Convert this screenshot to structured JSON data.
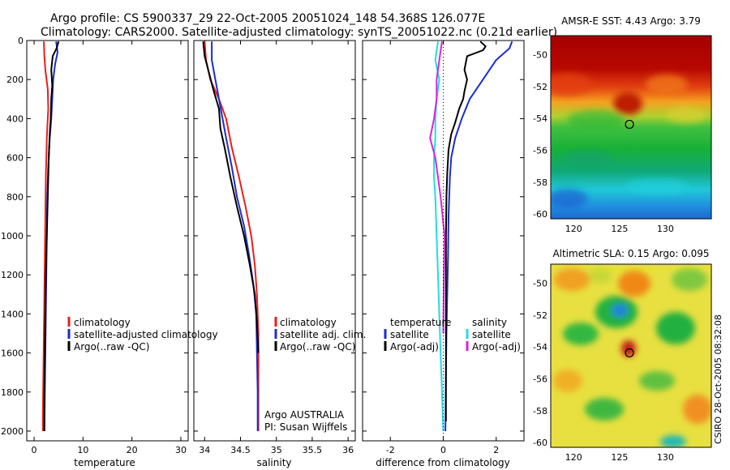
{
  "header": {
    "line1": "Argo profile: CS 5900337_29 22-Oct-2005 20051024_148 54.368S 126.077E",
    "line2": "Climatology: CARS2000. Satellite-adjusted climatology: synTS_20051022.nc (0.21d earlier)"
  },
  "colors": {
    "climatology": "#ee1c1c",
    "satellite": "#1c2ccc",
    "argo": "#000000",
    "satellite_salinity": "#22dddd",
    "argo_adj_salinity": "#dd22dd"
  },
  "credit": "CSIRO 28-Oct-2005 08:32:08",
  "chart_data": [
    {
      "type": "line",
      "xlabel": "temperature",
      "xlim": [
        -1.5,
        31.5
      ],
      "ylim": [
        2050,
        0
      ],
      "xticks": [
        0,
        10,
        20,
        30
      ],
      "yticks": [
        0,
        200,
        400,
        600,
        800,
        1000,
        1200,
        1400,
        1600,
        1800,
        2000
      ],
      "legend": {
        "placement": "lower-right",
        "entries": [
          "climatology",
          "satellite-adjusted climatology",
          "Argo(..raw -QC)"
        ]
      },
      "series": [
        {
          "name": "climatology",
          "color": "#ee1c1c",
          "points": [
            [
              2.0,
              5
            ],
            [
              2.1,
              80
            ],
            [
              2.3,
              150
            ],
            [
              2.8,
              250
            ],
            [
              2.9,
              350
            ],
            [
              2.6,
              500
            ],
            [
              2.4,
              700
            ],
            [
              2.3,
              900
            ],
            [
              2.2,
              1100
            ],
            [
              2.1,
              1300
            ],
            [
              2.0,
              1500
            ],
            [
              1.9,
              1700
            ],
            [
              1.8,
              1900
            ],
            [
              1.8,
              2000
            ]
          ]
        },
        {
          "name": "satellite-adjusted climatology",
          "color": "#1c2ccc",
          "points": [
            [
              4.5,
              5
            ],
            [
              4.8,
              60
            ],
            [
              4.3,
              120
            ],
            [
              3.9,
              200
            ],
            [
              3.7,
              300
            ],
            [
              3.5,
              400
            ],
            [
              3.2,
              500
            ],
            [
              2.9,
              650
            ],
            [
              2.7,
              800
            ],
            [
              2.6,
              1000
            ],
            [
              2.5,
              1200
            ],
            [
              2.4,
              1400
            ],
            [
              2.3,
              1600
            ],
            [
              2.2,
              1800
            ],
            [
              2.1,
              2000
            ]
          ]
        },
        {
          "name": "Argo(..raw -QC)",
          "color": "#000000",
          "points": [
            [
              5.0,
              5
            ],
            [
              4.6,
              40
            ],
            [
              3.8,
              80
            ],
            [
              3.5,
              150
            ],
            [
              3.7,
              230
            ],
            [
              3.5,
              300
            ],
            [
              3.4,
              400
            ],
            [
              3.2,
              480
            ],
            [
              3.0,
              600
            ],
            [
              2.8,
              800
            ],
            [
              2.6,
              1000
            ],
            [
              2.4,
              1200
            ],
            [
              2.3,
              1400
            ],
            [
              2.2,
              1600
            ],
            [
              2.1,
              1800
            ],
            [
              2.1,
              2000
            ]
          ]
        }
      ]
    },
    {
      "type": "line",
      "xlabel": "salinity",
      "xlim": [
        33.85,
        36.1
      ],
      "ylim": [
        2050,
        0
      ],
      "xticks": [
        34,
        34.5,
        35,
        35.5,
        36
      ],
      "yticks": [
        0,
        200,
        400,
        600,
        800,
        1000,
        1200,
        1400,
        1600,
        1800,
        2000
      ],
      "legend": {
        "placement": "lower-right",
        "entries": [
          "climatology",
          "satellite adj. clim.",
          "Argo(..raw -QC)"
        ]
      },
      "notes": [
        "Argo AUSTRALIA",
        "PI: Susan Wijffels"
      ],
      "series": [
        {
          "name": "climatology",
          "color": "#ee1c1c",
          "points": [
            [
              34.0,
              5
            ],
            [
              34.02,
              100
            ],
            [
              34.08,
              200
            ],
            [
              34.2,
              300
            ],
            [
              34.3,
              400
            ],
            [
              34.38,
              550
            ],
            [
              34.48,
              700
            ],
            [
              34.57,
              850
            ],
            [
              34.65,
              1000
            ],
            [
              34.7,
              1150
            ],
            [
              34.73,
              1300
            ],
            [
              34.75,
              1500
            ],
            [
              34.75,
              1800
            ],
            [
              34.75,
              2000
            ]
          ]
        },
        {
          "name": "satellite adj. clim.",
          "color": "#1c2ccc",
          "points": [
            [
              34.1,
              5
            ],
            [
              34.1,
              100
            ],
            [
              34.15,
              200
            ],
            [
              34.2,
              300
            ],
            [
              34.25,
              400
            ],
            [
              34.3,
              500
            ],
            [
              34.38,
              650
            ],
            [
              34.45,
              800
            ],
            [
              34.55,
              950
            ],
            [
              34.62,
              1100
            ],
            [
              34.68,
              1250
            ],
            [
              34.72,
              1400
            ],
            [
              34.73,
              1600
            ],
            [
              34.74,
              1800
            ],
            [
              34.74,
              2000
            ]
          ]
        },
        {
          "name": "Argo(..raw -QC)",
          "color": "#000000",
          "points": [
            [
              33.98,
              5
            ],
            [
              34.0,
              80
            ],
            [
              34.05,
              150
            ],
            [
              34.12,
              250
            ],
            [
              34.2,
              350
            ],
            [
              34.22,
              450
            ],
            [
              34.28,
              550
            ],
            [
              34.36,
              700
            ],
            [
              34.45,
              850
            ],
            [
              34.55,
              1000
            ],
            [
              34.63,
              1150
            ],
            [
              34.7,
              1300
            ],
            [
              34.73,
              1450
            ],
            [
              34.75,
              1600
            ]
          ]
        }
      ]
    },
    {
      "type": "line",
      "xlabel": "difference from climatology",
      "xlim": [
        -3.05,
        3.05
      ],
      "ylim": [
        2050,
        0
      ],
      "xticks": [
        -2,
        0,
        2
      ],
      "yticks": [
        0,
        200,
        400,
        600,
        800,
        1000,
        1200,
        1400,
        1600,
        1800,
        2000
      ],
      "legend": {
        "placement": "lower-right",
        "group1_title": "temperature",
        "group1": [
          "satellite",
          "Argo(-adj)"
        ],
        "group2_title": "salinity",
        "group2": [
          "satellite",
          "Argo(-adj)"
        ]
      },
      "series": [
        {
          "name": "temperature satellite",
          "color": "#1c2ccc",
          "points": [
            [
              2.6,
              5
            ],
            [
              2.5,
              40
            ],
            [
              2.0,
              100
            ],
            [
              1.5,
              200
            ],
            [
              1.0,
              300
            ],
            [
              0.7,
              400
            ],
            [
              0.45,
              500
            ],
            [
              0.3,
              600
            ],
            [
              0.25,
              700
            ],
            [
              0.2,
              900
            ],
            [
              0.18,
              1100
            ],
            [
              0.15,
              1300
            ],
            [
              0.12,
              1500
            ],
            [
              0.1,
              1700
            ],
            [
              0.08,
              2000
            ]
          ]
        },
        {
          "name": "temperature Argo(-adj)",
          "color": "#000000",
          "points": [
            [
              1.4,
              5
            ],
            [
              1.6,
              30
            ],
            [
              1.5,
              50
            ],
            [
              0.9,
              80
            ],
            [
              0.8,
              150
            ],
            [
              0.9,
              200
            ],
            [
              0.8,
              260
            ],
            [
              0.75,
              300
            ],
            [
              0.6,
              350
            ],
            [
              0.45,
              420
            ],
            [
              0.3,
              480
            ],
            [
              0.2,
              560
            ],
            [
              0.15,
              680
            ],
            [
              0.12,
              800
            ],
            [
              0.1,
              1000
            ],
            [
              0.1,
              1300
            ],
            [
              0.1,
              1600
            ],
            [
              0.1,
              1800
            ],
            [
              0.1,
              1950
            ]
          ]
        },
        {
          "name": "salinity satellite",
          "color": "#22dddd",
          "points": [
            [
              -0.2,
              5
            ],
            [
              -0.3,
              100
            ],
            [
              -0.15,
              200
            ],
            [
              -0.25,
              300
            ],
            [
              -0.3,
              400
            ],
            [
              -0.3,
              500
            ],
            [
              -0.35,
              600
            ],
            [
              -0.35,
              700
            ],
            [
              -0.3,
              800
            ],
            [
              -0.25,
              1000
            ],
            [
              -0.2,
              1200
            ],
            [
              -0.15,
              1400
            ],
            [
              -0.1,
              1600
            ],
            [
              -0.05,
              1800
            ],
            [
              0.0,
              2000
            ]
          ]
        },
        {
          "name": "salinity Argo(-adj)",
          "color": "#dd22dd",
          "points": [
            [
              -0.05,
              5
            ],
            [
              -0.15,
              100
            ],
            [
              -0.25,
              200
            ],
            [
              -0.25,
              300
            ],
            [
              -0.35,
              400
            ],
            [
              -0.5,
              500
            ],
            [
              -0.3,
              600
            ],
            [
              -0.2,
              700
            ],
            [
              -0.1,
              800
            ],
            [
              0.05,
              1000
            ],
            [
              0.02,
              1200
            ],
            [
              0.0,
              1500
            ]
          ]
        }
      ]
    },
    {
      "type": "heatmap",
      "title": "AMSR-E SST: 4.43 Argo: 3.79",
      "xlim": [
        117.5,
        135
      ],
      "ylim": [
        -60.3,
        -48.8
      ],
      "xticks": [
        120,
        125,
        130
      ],
      "yticks": [
        -50,
        -52,
        -54,
        -56,
        -58,
        -60
      ],
      "marker": {
        "lon": 126.077,
        "lat": -54.368
      }
    },
    {
      "type": "heatmap",
      "title": "Altimetric SLA: 0.15 Argo: 0.095",
      "xlim": [
        117.5,
        135
      ],
      "ylim": [
        -60.3,
        -48.8
      ],
      "xticks": [
        120,
        125,
        130
      ],
      "yticks": [
        -50,
        -52,
        -54,
        -56,
        -58,
        -60
      ],
      "marker": {
        "lon": 126.077,
        "lat": -54.368
      }
    }
  ]
}
